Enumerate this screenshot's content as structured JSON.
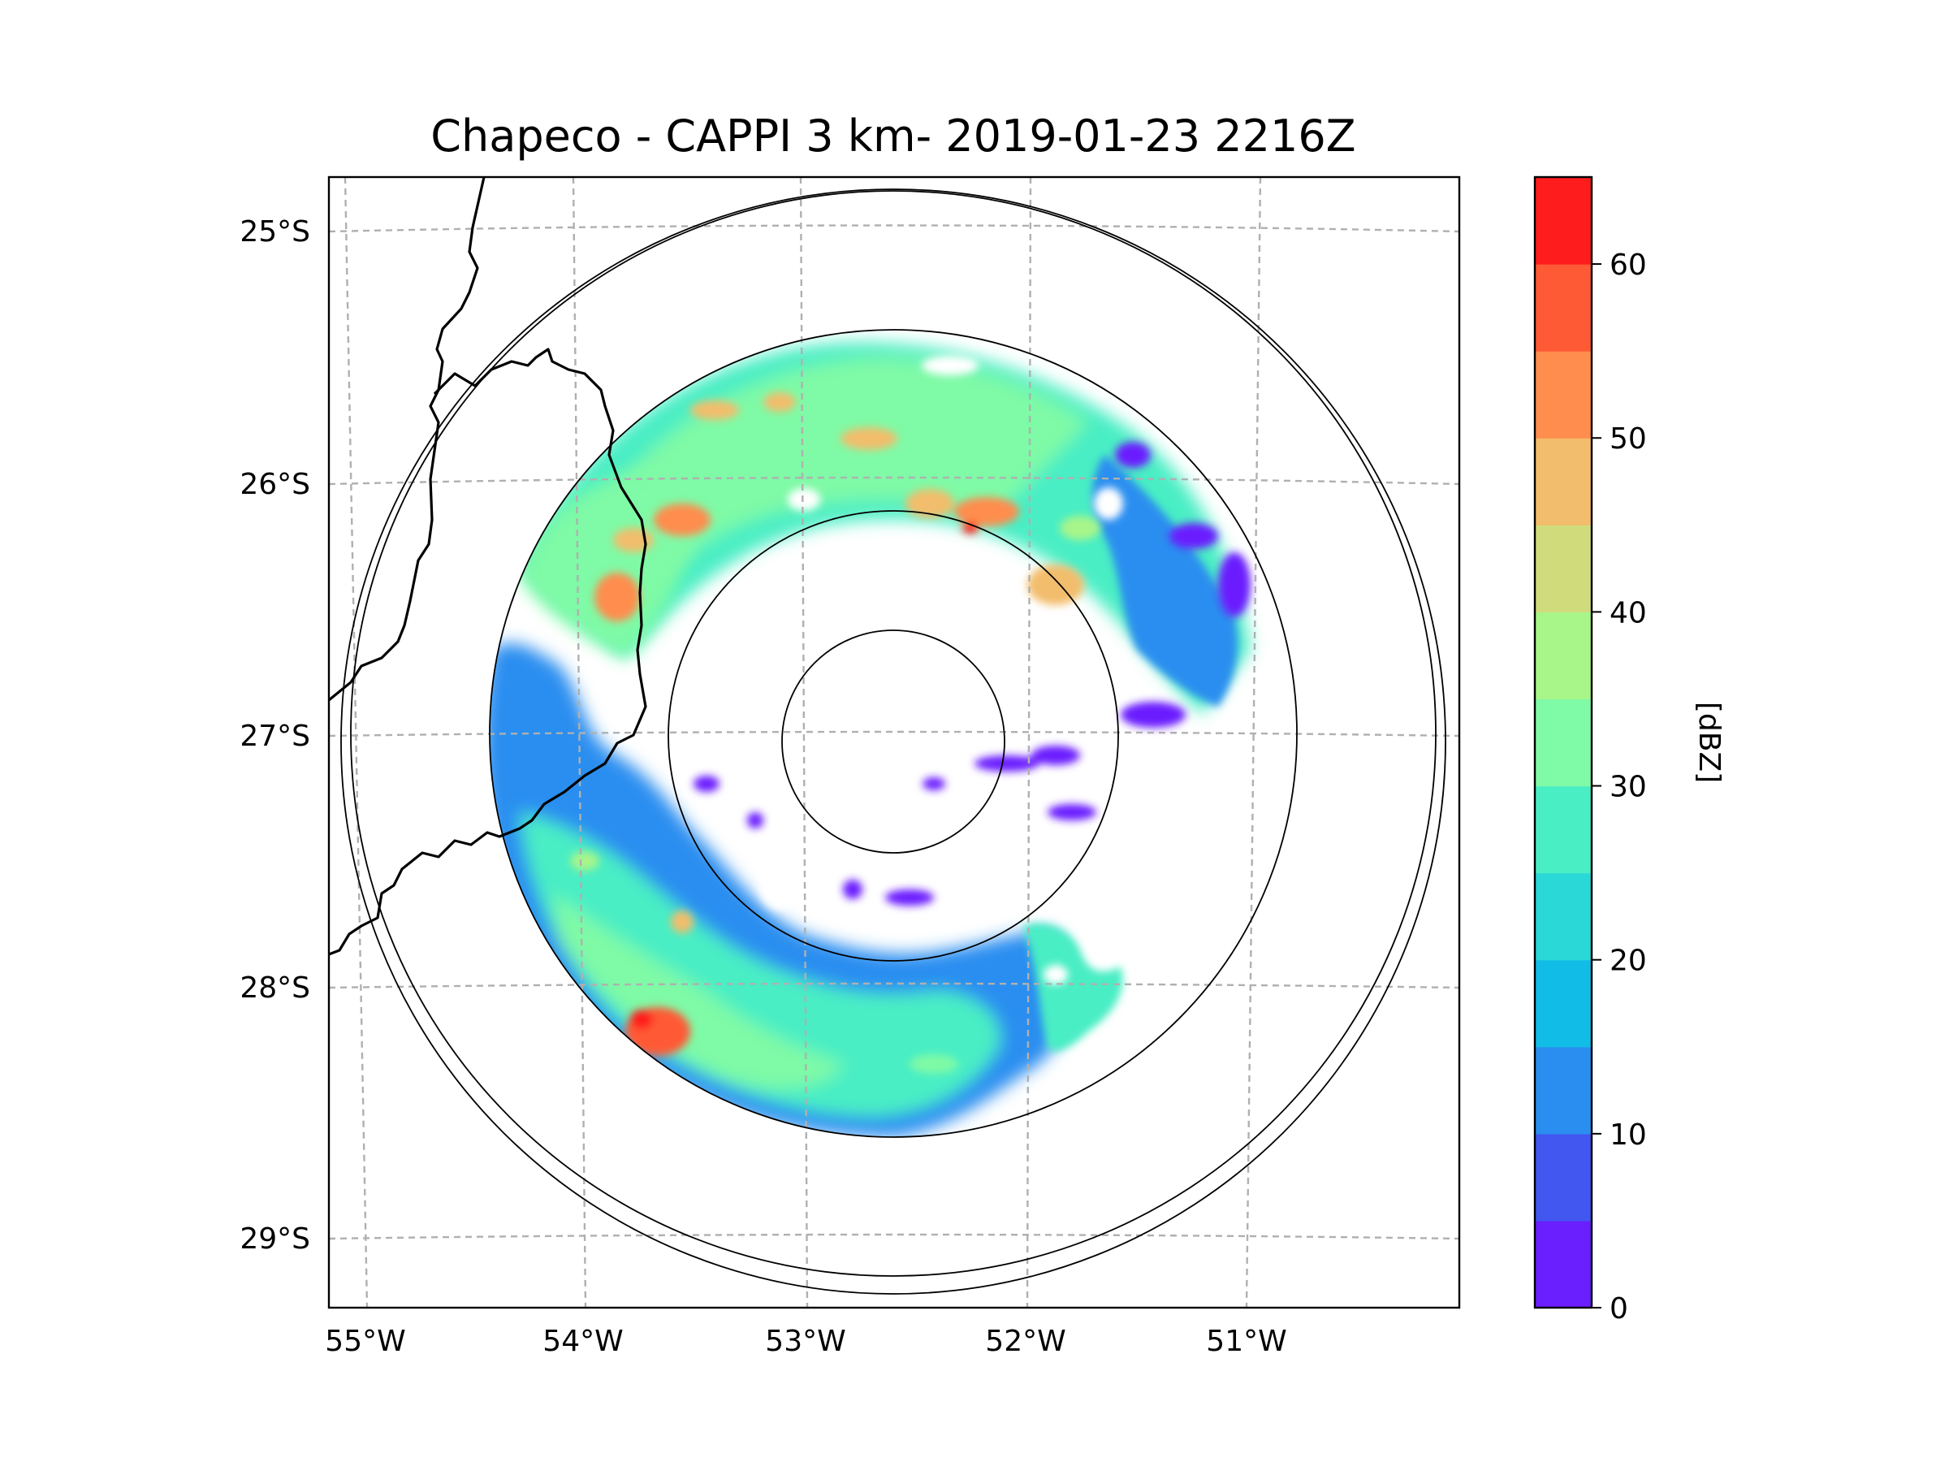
{
  "title": "Chapeco - CAPPI 3 km- 2019-01-23 2216Z",
  "map": {
    "longitude_labels": [
      "55°W",
      "54°W",
      "53°W",
      "52°W",
      "51°W"
    ],
    "latitude_labels": [
      "25°S",
      "26°S",
      "27°S",
      "28°S",
      "29°S"
    ],
    "extent": {
      "lon_min": -55.2,
      "lon_max": -50.1,
      "lat_min": -29.3,
      "lat_max": -24.8
    },
    "radar_site": {
      "name": "Chapeco",
      "lon": -52.6,
      "lat": -27.03
    },
    "range_rings": [
      "inner",
      "second",
      "third",
      "fourth",
      "outer"
    ]
  },
  "colorbar": {
    "label": "[dBZ]",
    "tick_labels": [
      "0",
      "10",
      "20",
      "30",
      "40",
      "50",
      "60"
    ],
    "levels": [
      0,
      5,
      10,
      15,
      20,
      25,
      30,
      35,
      40,
      45,
      50,
      55,
      60,
      65
    ],
    "colors": [
      "#6a1fff",
      "#4256f0",
      "#2a8ef0",
      "#11bde6",
      "#2ad8d8",
      "#4aeec4",
      "#7ffaa6",
      "#a8f58a",
      "#d0dc7c",
      "#f2bd6c",
      "#ff8d4e",
      "#ff5a36",
      "#ff1c1c"
    ]
  }
}
